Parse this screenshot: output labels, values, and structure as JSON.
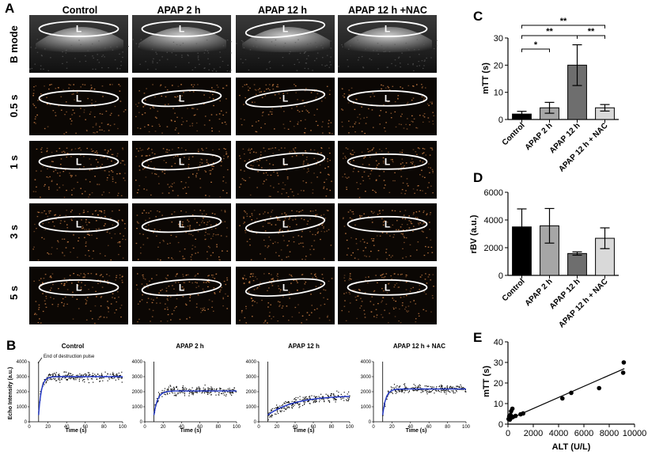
{
  "panels": {
    "A": "A",
    "B": "B",
    "C": "C",
    "D": "D",
    "E": "E"
  },
  "imaging": {
    "columns": [
      "Control",
      "APAP 2 h",
      "APAP 12 h",
      "APAP 12 h +NAC"
    ],
    "rows": [
      "B mode",
      "0.5 s",
      "1 s",
      "3 s",
      "5 s"
    ],
    "roi_label": "L"
  },
  "chart_data": [
    {
      "id": "C",
      "type": "bar",
      "title": "",
      "categories": [
        "Control",
        "APAP 2 h",
        "APAP 12 h",
        "APAP 12 h + NAC"
      ],
      "values": [
        2.0,
        4.3,
        20.0,
        4.3
      ],
      "errors": [
        1.0,
        2.0,
        7.5,
        1.2
      ],
      "colors": [
        "#000000",
        "#a6a6a6",
        "#6e6e6e",
        "#d9d9d9"
      ],
      "ylabel": "mTT (s)",
      "xlabel": "",
      "ylim": [
        0,
        30
      ],
      "yticks": [
        0,
        10,
        20,
        30
      ],
      "significance": [
        {
          "from": "Control",
          "to": "APAP 2 h",
          "label": "*"
        },
        {
          "from": "Control",
          "to": "APAP 12 h",
          "label": "**"
        },
        {
          "from": "APAP 12 h",
          "to": "APAP 12 h + NAC",
          "label": "**"
        },
        {
          "from": "Control",
          "to": "APAP 12 h + NAC",
          "label": "**"
        }
      ]
    },
    {
      "id": "D",
      "type": "bar",
      "title": "",
      "categories": [
        "Control",
        "APAP 2 h",
        "APAP 12 h",
        "APAP 12 h + NAC"
      ],
      "values": [
        3500,
        3580,
        1580,
        2680
      ],
      "errors": [
        1300,
        1250,
        120,
        750
      ],
      "colors": [
        "#000000",
        "#a6a6a6",
        "#6e6e6e",
        "#d9d9d9"
      ],
      "ylabel": "rBV (a.u.)",
      "xlabel": "",
      "ylim": [
        0,
        6000
      ],
      "yticks": [
        0,
        2000,
        4000,
        6000
      ]
    },
    {
      "id": "E",
      "type": "scatter",
      "title": "",
      "x": [
        50,
        100,
        150,
        200,
        250,
        300,
        350,
        400,
        600,
        1000,
        1200,
        4300,
        5000,
        7200,
        9100,
        9150
      ],
      "y": [
        2.5,
        3.8,
        2.2,
        4.5,
        6.3,
        3.2,
        7.5,
        3.5,
        4.0,
        4.8,
        5.2,
        12.5,
        15.2,
        17.5,
        25.0,
        30.0
      ],
      "regression": {
        "x": [
          0,
          9200
        ],
        "y": [
          2.2,
          27.0
        ]
      },
      "xlabel": "ALT (U/L)",
      "ylabel": "mTT (s)",
      "xlim": [
        0,
        10000
      ],
      "ylim": [
        0,
        40
      ],
      "xticks": [
        0,
        2000,
        4000,
        6000,
        8000,
        10000
      ],
      "yticks": [
        0,
        10,
        20,
        30,
        40
      ]
    },
    {
      "id": "B1",
      "type": "scatter",
      "title": "Control",
      "xlabel": "Time (s)",
      "ylabel": "Echo Intensity (a.u.)",
      "xlim": [
        0,
        100
      ],
      "ylim": [
        0,
        4000
      ],
      "xticks": [
        0,
        20,
        40,
        60,
        80,
        100
      ],
      "yticks": [
        0,
        1000,
        2000,
        3000,
        4000
      ],
      "fit": {
        "plateau": 3000,
        "t0": 10,
        "tau": 3
      },
      "annotation": "End of destruction pulse"
    },
    {
      "id": "B2",
      "type": "scatter",
      "title": "APAP 2 h",
      "xlabel": "Time (s)",
      "ylabel": "",
      "xlim": [
        0,
        100
      ],
      "ylim": [
        0,
        4000
      ],
      "xticks": [
        0,
        20,
        40,
        60,
        80,
        100
      ],
      "yticks": [
        0,
        1000,
        2000,
        3000,
        4000
      ],
      "fit": {
        "plateau": 2050,
        "t0": 10,
        "tau": 4
      }
    },
    {
      "id": "B3",
      "type": "scatter",
      "title": "APAP 12 h",
      "xlabel": "Time (s)",
      "ylabel": "",
      "xlim": [
        0,
        100
      ],
      "ylim": [
        0,
        4000
      ],
      "xticks": [
        0,
        20,
        40,
        60,
        80,
        100
      ],
      "yticks": [
        0,
        1000,
        2000,
        3000,
        4000
      ],
      "fit": {
        "plateau": 1750,
        "t0": 10,
        "tau": 30
      }
    },
    {
      "id": "B4",
      "type": "scatter",
      "title": "APAP 12 h + NAC",
      "xlabel": "Time (s)",
      "ylabel": "",
      "xlim": [
        0,
        100
      ],
      "ylim": [
        0,
        4000
      ],
      "xticks": [
        0,
        20,
        40,
        60,
        80,
        100
      ],
      "yticks": [
        0,
        1000,
        2000,
        3000,
        4000
      ],
      "fit": {
        "plateau": 2180,
        "t0": 10,
        "tau": 3.5
      }
    }
  ],
  "colors": {
    "fit_line": "#1f35c8",
    "points": "#111111",
    "ultrasound_bg": "#0b0704",
    "contrast": "#d9884a",
    "roi": "#ffffff"
  }
}
